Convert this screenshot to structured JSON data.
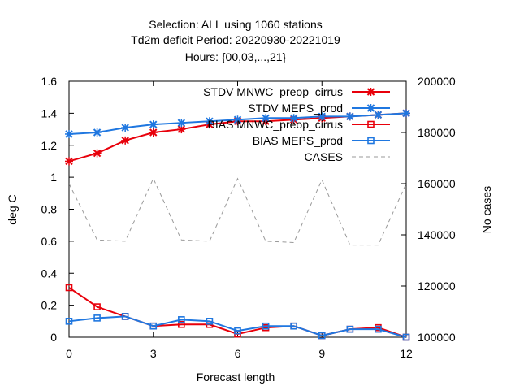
{
  "chart_data": {
    "type": "line",
    "title_lines": [
      "Selection: ALL using  1060 stations",
      "Td2m deficit   Period: 20220930-20221019",
      "Hours: {00,03,...,21}"
    ],
    "xlabel": "Forecast length",
    "ylabel": "deg C",
    "y2label": "No cases",
    "xlim": [
      0,
      12
    ],
    "ylim": [
      0,
      1.6
    ],
    "y2lim": [
      100000,
      200000
    ],
    "x_ticks": [
      0,
      3,
      6,
      9,
      12
    ],
    "y_ticks": [
      "0",
      "0.2",
      "0.4",
      "0.6",
      "0.8",
      "1",
      "1.2",
      "1.4",
      "1.6"
    ],
    "y2_ticks": [
      "100000",
      "120000",
      "140000",
      "160000",
      "180000",
      "200000"
    ],
    "grid": false,
    "legend_position": "top-right",
    "x": [
      0,
      1,
      2,
      3,
      4,
      5,
      6,
      7,
      8,
      9,
      10,
      11,
      12
    ],
    "series": [
      {
        "name": "STDV MNWC_preop_cirrus",
        "color": "#e8000b",
        "marker": "x",
        "axis": "left",
        "values": [
          1.1,
          1.15,
          1.23,
          1.28,
          1.3,
          1.33,
          1.35,
          1.35,
          1.36,
          1.37,
          1.38,
          1.39,
          1.4
        ]
      },
      {
        "name": "STDV MEPS_prod",
        "color": "#1f77e0",
        "marker": "x",
        "axis": "left",
        "values": [
          1.27,
          1.28,
          1.31,
          1.33,
          1.34,
          1.35,
          1.36,
          1.37,
          1.37,
          1.38,
          1.38,
          1.39,
          1.4
        ]
      },
      {
        "name": "BIAS MNWC_preop_cirrus",
        "color": "#e8000b",
        "marker": "square",
        "axis": "left",
        "values": [
          0.31,
          0.19,
          0.13,
          0.07,
          0.08,
          0.08,
          0.02,
          0.06,
          0.07,
          0.01,
          0.05,
          0.06,
          0.0
        ]
      },
      {
        "name": "BIAS MEPS_prod",
        "color": "#1f77e0",
        "marker": "square",
        "axis": "left",
        "values": [
          0.1,
          0.12,
          0.13,
          0.07,
          0.11,
          0.1,
          0.04,
          0.07,
          0.07,
          0.01,
          0.05,
          0.05,
          0.0
        ]
      },
      {
        "name": "CASES",
        "color": "#999999",
        "marker": "none",
        "dashed": true,
        "axis": "right",
        "values": [
          160000,
          138000,
          137500,
          162000,
          138000,
          137500,
          162000,
          137500,
          137000,
          161500,
          136000,
          136000,
          160000
        ]
      }
    ]
  }
}
